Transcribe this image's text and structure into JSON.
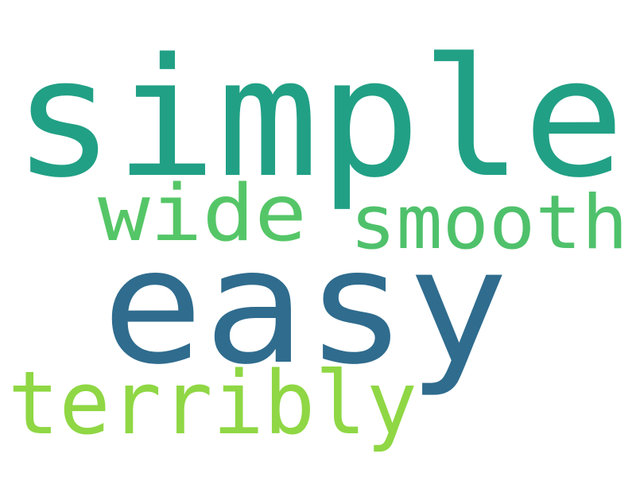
{
  "word_cloud": {
    "words": [
      {
        "text": "simple",
        "color": "#21a085"
      },
      {
        "text": "easy",
        "color": "#2f6c8e"
      },
      {
        "text": "wide",
        "color": "#55c667"
      },
      {
        "text": "smooth",
        "color": "#4fc16b"
      },
      {
        "text": "terribly",
        "color": "#8fd744"
      }
    ]
  }
}
